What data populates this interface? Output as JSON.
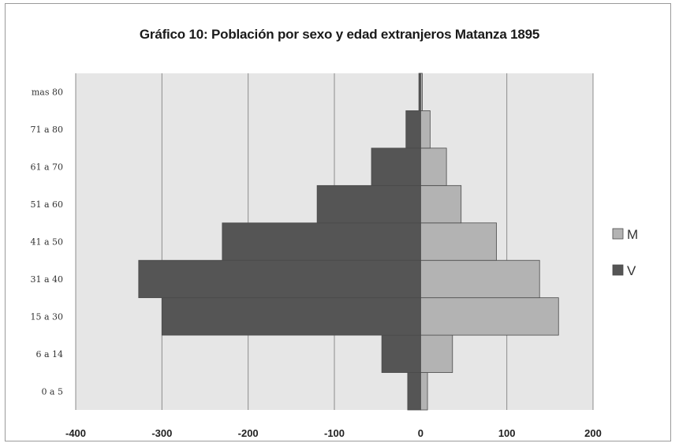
{
  "chart_data": {
    "type": "bar",
    "orientation": "horizontal",
    "title": "Gráfico 10: Población por sexo y edad extranjeros Matanza 1895",
    "categories": [
      "0 a 5",
      "6 a 14",
      "15 a 30",
      "31 a 40",
      "41 a 50",
      "51 a 60",
      "61 a 70",
      "71 a 80",
      "mas 80"
    ],
    "series": [
      {
        "name": "M",
        "color": "#b3b3b3",
        "values": [
          8,
          37,
          160,
          138,
          88,
          47,
          30,
          11,
          2
        ]
      },
      {
        "name": "V",
        "color": "#555555",
        "values": [
          -15,
          -45,
          -300,
          -327,
          -230,
          -120,
          -57,
          -17,
          -2
        ]
      }
    ],
    "xlim": [
      -400,
      200
    ],
    "xticks": [
      -400,
      -300,
      -200,
      -100,
      0,
      100,
      200
    ],
    "grid": true,
    "legend_position": "right",
    "plot_background": "#e6e6e6"
  }
}
